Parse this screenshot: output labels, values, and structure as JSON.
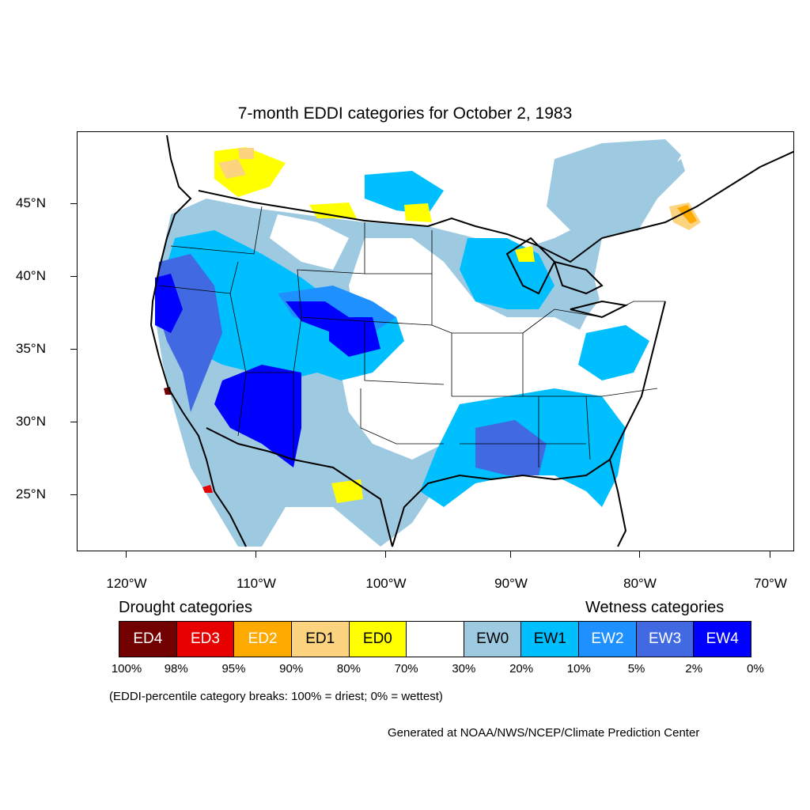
{
  "title": "7-month EDDI categories for October 2, 1983",
  "map": {
    "lat_labels": [
      "45°N",
      "40°N",
      "35°N",
      "30°N",
      "25°N"
    ],
    "lon_labels": [
      "120°W",
      "110°W",
      "100°W",
      "90°W",
      "80°W",
      "70°W"
    ]
  },
  "legend": {
    "drought_heading": "Drought categories",
    "wetness_heading": "Wetness categories",
    "categories": [
      {
        "label": "ED4",
        "color": "#730000",
        "text_color": "#ffffff"
      },
      {
        "label": "ED3",
        "color": "#e60000",
        "text_color": "#ffffff"
      },
      {
        "label": "ED2",
        "color": "#ffaa00",
        "text_color": "#ffffff"
      },
      {
        "label": "ED1",
        "color": "#fcd37f",
        "text_color": "#000000"
      },
      {
        "label": "ED0",
        "color": "#ffff00",
        "text_color": "#000000"
      },
      {
        "label": "",
        "color": "#ffffff",
        "text_color": "#000000"
      },
      {
        "label": "EW0",
        "color": "#9ecae1",
        "text_color": "#000000"
      },
      {
        "label": "EW1",
        "color": "#00bfff",
        "text_color": "#000000"
      },
      {
        "label": "EW2",
        "color": "#1e90ff",
        "text_color": "#ffffff"
      },
      {
        "label": "EW3",
        "color": "#4169e1",
        "text_color": "#ffffff"
      },
      {
        "label": "EW4",
        "color": "#0000ff",
        "text_color": "#ffffff"
      }
    ],
    "breaks": [
      "100%",
      "98%",
      "95%",
      "90%",
      "80%",
      "70%",
      "30%",
      "20%",
      "10%",
      "5%",
      "2%",
      "0%"
    ]
  },
  "note": "(EDDI-percentile category breaks: 100% = driest; 0% = wettest)",
  "credit": "Generated at NOAA/NWS/NCEP/Climate Prediction Center"
}
